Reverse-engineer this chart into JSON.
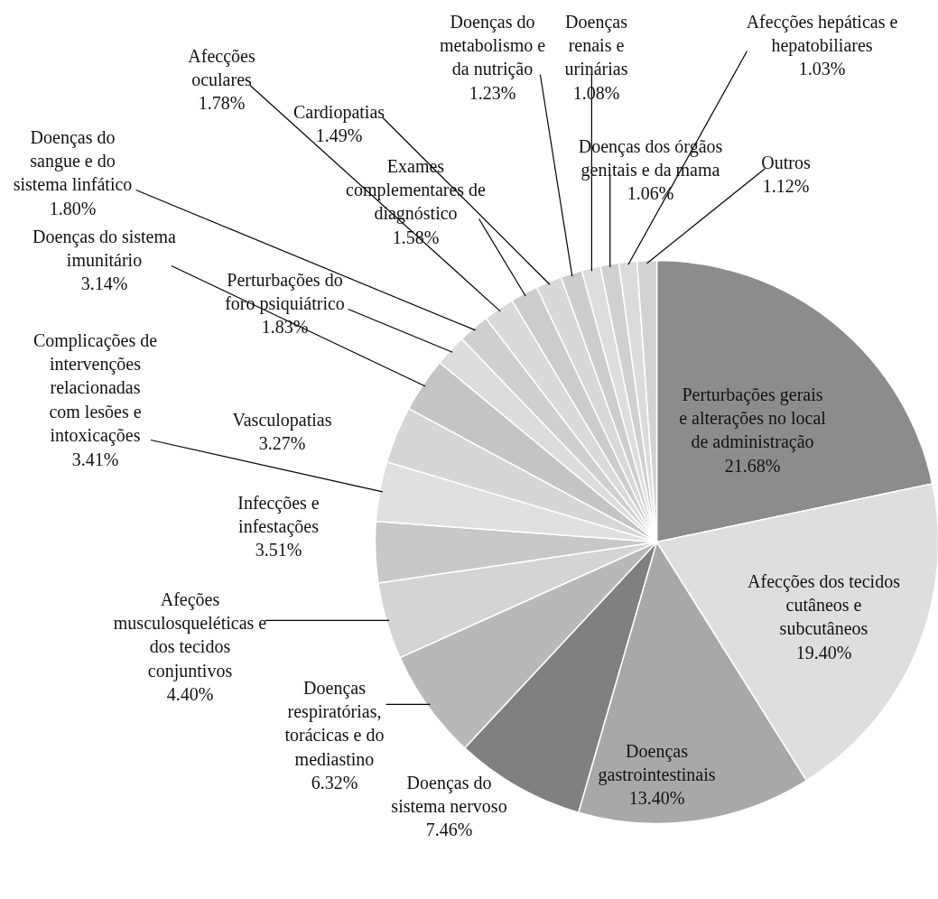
{
  "chart_data": {
    "type": "pie",
    "value_labels": [
      "21.68%",
      "19.40%",
      "13.40%",
      "7.46%",
      "6.32%",
      "4.40%",
      "3.51%",
      "3.41%",
      "3.27%",
      "3.14%",
      "1.83%",
      "1.80%",
      "1.78%",
      "1.58%",
      "1.49%",
      "1.23%",
      "1.08%",
      "1.06%",
      "1.03%",
      "1.12%"
    ],
    "categories": [
      "Perturbações gerais\ne alterações no local\nde administração",
      "Afecções dos tecidos\ncutâneos e\nsubcutâneos",
      "Doenças\ngastrointestinais",
      "Doenças do\nsistema nervoso",
      "Doenças\nrespiratórias,\ntorácicas e do\nmediastino",
      "Afeções\nmusculosqueléticas e\ndos tecidos\nconjuntivos",
      "Infecções e\ninfestações",
      "Complicações de\nintervenções\nrelacionadas\ncom lesões e\nintoxicações",
      "Vasculopatias",
      "Doenças do sistema\nimunitário",
      "Perturbações do\nforo psiquiátrico",
      "Doenças do\nsangue e do\nsistema linfático",
      "Afecções\noculares",
      "Exames\ncomplementares de\ndiagnóstico",
      "Cardiopatias",
      "Doenças do\nmetabolismo e\nda nutrição",
      "Doenças\nrenais e\nurinárias",
      "Doenças dos órgãos\ngenitais e da mama",
      "Afecções hepáticas e\nhepatobiliares",
      "Outros"
    ],
    "values": [
      21.68,
      19.4,
      13.4,
      7.46,
      6.32,
      4.4,
      3.51,
      3.41,
      3.27,
      3.14,
      1.83,
      1.8,
      1.78,
      1.58,
      1.49,
      1.23,
      1.08,
      1.06,
      1.03,
      1.12
    ],
    "colors": [
      "#8c8c8c",
      "#dedede",
      "#a8a8a8",
      "#808080",
      "#b8b8b8",
      "#d4d4d4",
      "#c8c8c8",
      "#e0e0e0",
      "#d6d6d6",
      "#c4c4c4",
      "#dcdcdc",
      "#cfcfcf",
      "#dadada",
      "#cccccc",
      "#d8d8d8",
      "#cdcdcd",
      "#dddddd",
      "#d0d0d0",
      "#dbdbdb",
      "#d2d2d2"
    ]
  }
}
